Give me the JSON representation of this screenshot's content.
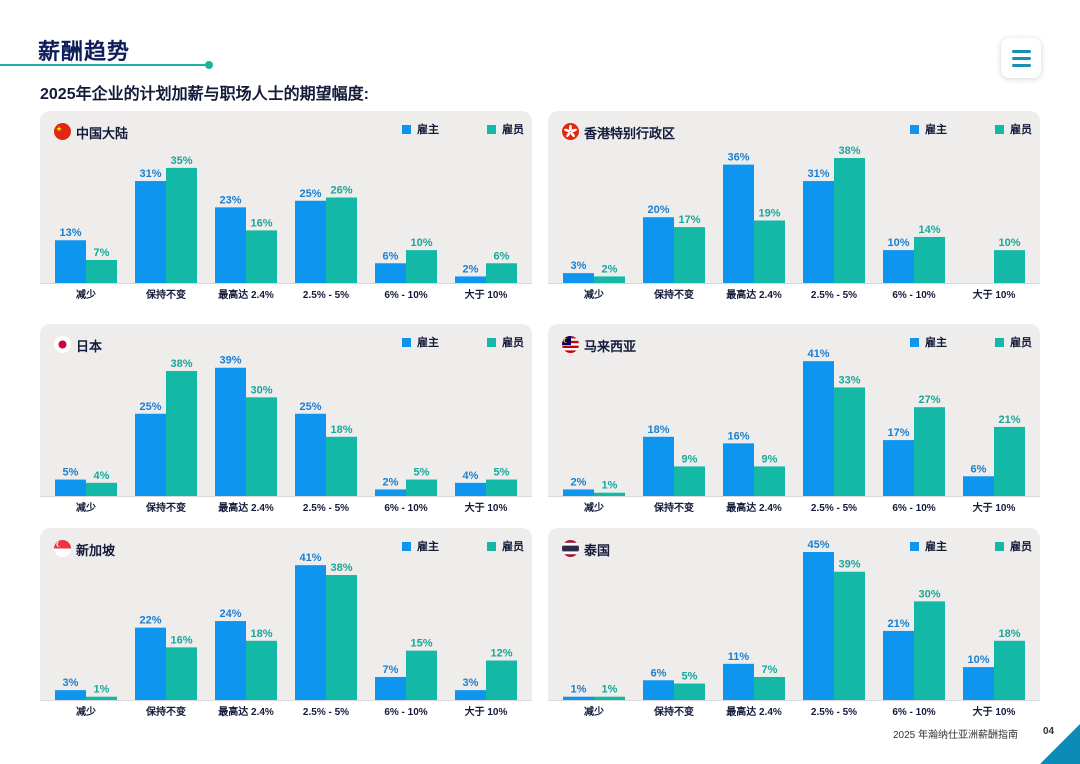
{
  "header": {
    "title": "薪酬趋势",
    "subtitle": "2025年企业的计划加薪与职场人士的期望幅度:"
  },
  "legend": {
    "employer": "雇主",
    "employee": "雇员"
  },
  "colors": {
    "employer": "#0e95f0",
    "employee": "#14b8a6",
    "label_employer": "#1a7fd1",
    "label_employee": "#17a89a"
  },
  "footer": {
    "text": "2025 年瀚纳仕亚洲薪酬指南",
    "page": "04"
  },
  "chart_data": [
    {
      "type": "bar",
      "title": "中国大陆",
      "flag_icon": "china-flag-icon",
      "categories": [
        "减少",
        "保持不变",
        "最高达 2.4%",
        "2.5% - 5%",
        "6% - 10%",
        "大于 10%"
      ],
      "series": [
        {
          "name": "雇主",
          "values": [
            13,
            31,
            23,
            25,
            6,
            2
          ]
        },
        {
          "name": "雇员",
          "values": [
            7,
            35,
            16,
            26,
            10,
            6
          ]
        }
      ],
      "ylim": [
        0,
        45
      ]
    },
    {
      "type": "bar",
      "title": "香港特别行政区",
      "flag_icon": "hong-kong-flag-icon",
      "categories": [
        "减少",
        "保持不变",
        "最高达 2.4%",
        "2.5% - 5%",
        "6% - 10%",
        "大于 10%"
      ],
      "series": [
        {
          "name": "雇主",
          "values": [
            3,
            20,
            36,
            31,
            10,
            null
          ]
        },
        {
          "name": "雇员",
          "values": [
            2,
            17,
            19,
            38,
            14,
            10
          ]
        }
      ],
      "ylim": [
        0,
        45
      ]
    },
    {
      "type": "bar",
      "title": "日本",
      "flag_icon": "japan-flag-icon",
      "categories": [
        "减少",
        "保持不变",
        "最高达 2.4%",
        "2.5% - 5%",
        "6% - 10%",
        "大于 10%"
      ],
      "series": [
        {
          "name": "雇主",
          "values": [
            5,
            25,
            39,
            25,
            2,
            4
          ]
        },
        {
          "name": "雇员",
          "values": [
            4,
            38,
            30,
            18,
            5,
            5
          ]
        }
      ],
      "ylim": [
        0,
        45
      ]
    },
    {
      "type": "bar",
      "title": "马来西亚",
      "flag_icon": "malaysia-flag-icon",
      "categories": [
        "减少",
        "保持不变",
        "最高达 2.4%",
        "2.5% - 5%",
        "6% - 10%",
        "大于 10%"
      ],
      "series": [
        {
          "name": "雇主",
          "values": [
            2,
            18,
            16,
            41,
            17,
            6
          ]
        },
        {
          "name": "雇员",
          "values": [
            1,
            9,
            9,
            33,
            27,
            21
          ]
        }
      ],
      "ylim": [
        0,
        45
      ]
    },
    {
      "type": "bar",
      "title": "新加坡",
      "flag_icon": "singapore-flag-icon",
      "categories": [
        "减少",
        "保持不变",
        "最高达 2.4%",
        "2.5% - 5%",
        "6% - 10%",
        "大于 10%"
      ],
      "series": [
        {
          "name": "雇主",
          "values": [
            3,
            22,
            24,
            41,
            7,
            3
          ]
        },
        {
          "name": "雇员",
          "values": [
            1,
            16,
            18,
            38,
            15,
            12
          ]
        }
      ],
      "ylim": [
        0,
        45
      ]
    },
    {
      "type": "bar",
      "title": "泰国",
      "flag_icon": "thailand-flag-icon",
      "categories": [
        "减少",
        "保持不变",
        "最高达 2.4%",
        "2.5% - 5%",
        "6% - 10%",
        "大于 10%"
      ],
      "series": [
        {
          "name": "雇主",
          "values": [
            1,
            6,
            11,
            45,
            21,
            10
          ]
        },
        {
          "name": "雇员",
          "values": [
            1,
            5,
            7,
            39,
            30,
            18
          ]
        }
      ],
      "ylim": [
        0,
        45
      ]
    }
  ]
}
